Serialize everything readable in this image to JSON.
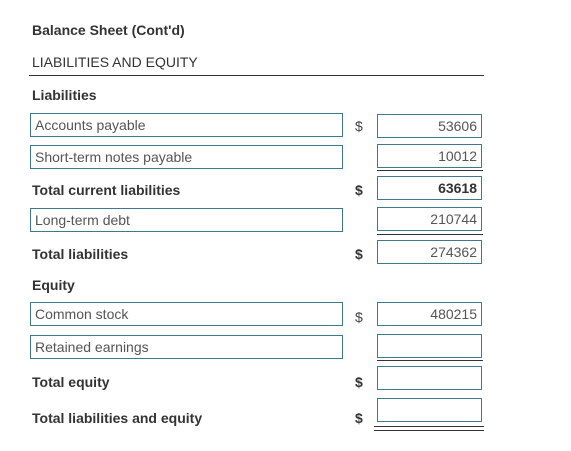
{
  "title": "Balance Sheet (Cont'd)",
  "section_heading": "LIABILITIES AND EQUITY",
  "liabilities": {
    "heading": "Liabilities",
    "accounts_payable": {
      "label": "Accounts payable",
      "currency": "$",
      "value": "53606"
    },
    "short_term_notes": {
      "label": "Short-term notes payable",
      "value": "10012"
    },
    "total_current": {
      "label": "Total current liabilities",
      "currency": "$",
      "value": "63618"
    },
    "long_term_debt": {
      "label": "Long-term debt",
      "value": "210744"
    },
    "total": {
      "label": "Total liabilities",
      "currency": "$",
      "value": "274362"
    }
  },
  "equity": {
    "heading": "Equity",
    "common_stock": {
      "label": "Common stock",
      "currency": "$",
      "value": "480215"
    },
    "retained_earnings": {
      "label": "Retained earnings",
      "value": ""
    },
    "total": {
      "label": "Total equity",
      "currency": "$",
      "value": ""
    }
  },
  "grand_total": {
    "label": "Total liabilities and equity",
    "currency": "$",
    "value": ""
  },
  "colors": {
    "input_border": "#3c7a89",
    "text": "#333333"
  }
}
